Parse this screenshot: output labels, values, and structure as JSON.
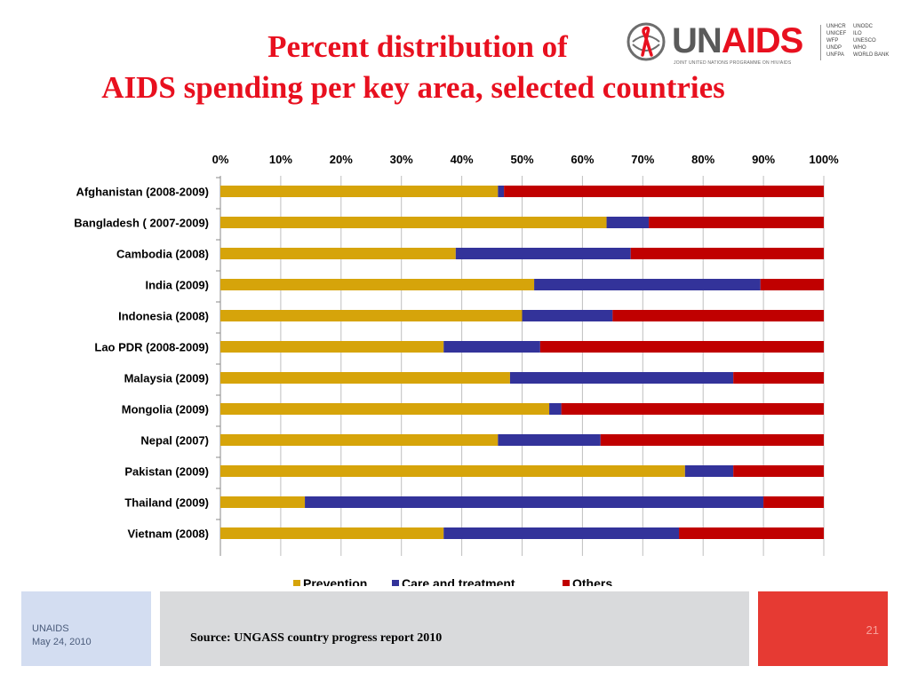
{
  "slide": {
    "title_line1": "Percent distribution of",
    "title_line2": "AIDS spending per key area, selected countries",
    "footer_org": "UNAIDS",
    "footer_date": "May 24, 2010",
    "source": "Source:  UNGASS country progress report 2010",
    "page_number": "21"
  },
  "logo": {
    "word_un": "UN",
    "word_aids": "AIDS",
    "tagline": "JOINT UNITED NATIONS PROGRAMME ON HIV/AIDS",
    "cosponsors_col1": [
      "UNHCR",
      "UNICEF",
      "WFP",
      "UNDP",
      "UNFPA"
    ],
    "cosponsors_col2": [
      "UNODC",
      "ILO",
      "UNESCO",
      "WHO",
      "WORLD BANK"
    ]
  },
  "colors": {
    "title": "#e8101f",
    "prevention": "#d6a40a",
    "care": "#33339a",
    "others": "#c00000"
  },
  "chart_data": {
    "type": "bar",
    "orientation": "horizontal",
    "stacked": "percent",
    "title": "",
    "xlabel": "",
    "ylabel": "",
    "xlim": [
      0,
      100
    ],
    "x_ticks": [
      "0%",
      "10%",
      "20%",
      "30%",
      "40%",
      "50%",
      "60%",
      "70%",
      "80%",
      "90%",
      "100%"
    ],
    "grid": true,
    "legend_position": "bottom",
    "categories": [
      "Afghanistan (2008-2009)",
      "Bangladesh ( 2007-2009)",
      "Cambodia (2008)",
      "India (2009)",
      "Indonesia (2008)",
      "Lao PDR (2008-2009)",
      "Malaysia (2009)",
      "Mongolia (2009)",
      "Nepal (2007)",
      "Pakistan (2009)",
      "Thailand (2009)",
      "Vietnam (2008)"
    ],
    "series": [
      {
        "name": "Prevention",
        "values": [
          46,
          64,
          39,
          52,
          50,
          37,
          48,
          54.5,
          46,
          77,
          14,
          37
        ]
      },
      {
        "name": "Care and treatment",
        "values": [
          1,
          7,
          29,
          37.5,
          15,
          16,
          37,
          2,
          17,
          8,
          76,
          39
        ]
      },
      {
        "name": "Others",
        "values": [
          53,
          29,
          32,
          10.5,
          35,
          47,
          15,
          43.5,
          37,
          15,
          10,
          24
        ]
      }
    ]
  }
}
